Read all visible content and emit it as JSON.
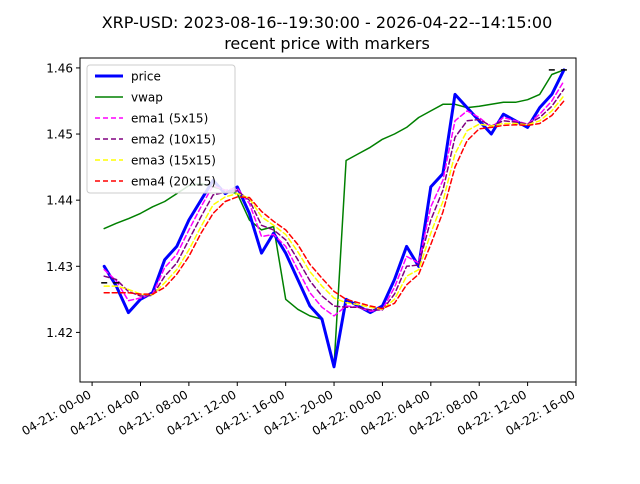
{
  "chart_data": {
    "type": "line",
    "title": "XRP-USD: 2023-08-16--19:30:00 - 2026-04-22--14:15:00",
    "subtitle": "recent price with markers",
    "xlabel": "",
    "ylabel": "",
    "x_ticks": [
      "04-21: 00-00",
      "04-21: 04-00",
      "04-21: 08-00",
      "04-21: 12-00",
      "04-21: 16-00",
      "04-21: 20-00",
      "04-22: 00-00",
      "04-22: 04-00",
      "04-22: 08-00",
      "04-22: 12-00",
      "04-22: 16-00"
    ],
    "y_ticks": [
      "1.42",
      "1.43",
      "1.44",
      "1.45",
      "1.46"
    ],
    "xlim": [
      "04-20 23:00",
      "04-22 16:00"
    ],
    "ylim": [
      1.4125,
      1.4615
    ],
    "grid": false,
    "legend": "top-left",
    "x": [
      "04-21 01:00",
      "04-21 02:00",
      "04-21 03:00",
      "04-21 04:00",
      "04-21 05:00",
      "04-21 06:00",
      "04-21 07:00",
      "04-21 08:00",
      "04-21 09:00",
      "04-21 10:00",
      "04-21 11:00",
      "04-21 12:00",
      "04-21 13:00",
      "04-21 14:00",
      "04-21 15:00",
      "04-21 16:00",
      "04-21 17:00",
      "04-21 18:00",
      "04-21 19:00",
      "04-21 20:00",
      "04-21 21:00",
      "04-21 22:00",
      "04-21 23:00",
      "04-22 00:00",
      "04-22 01:00",
      "04-22 02:00",
      "04-22 03:00",
      "04-22 04:00",
      "04-22 05:00",
      "04-22 06:00",
      "04-22 07:00",
      "04-22 08:00",
      "04-22 09:00",
      "04-22 10:00",
      "04-22 11:00",
      "04-22 12:00",
      "04-22 13:00",
      "04-22 14:00",
      "04-22 15:00"
    ],
    "series": [
      {
        "name": "price",
        "color": "#0000ff",
        "style": "solid",
        "width": 3,
        "values": [
          1.43,
          1.427,
          1.423,
          1.425,
          1.426,
          1.431,
          1.433,
          1.437,
          1.44,
          1.443,
          1.441,
          1.442,
          1.438,
          1.432,
          1.435,
          1.432,
          1.428,
          1.424,
          1.422,
          1.4148,
          1.425,
          1.424,
          1.423,
          1.424,
          1.428,
          1.433,
          1.43,
          1.442,
          1.444,
          1.456,
          1.454,
          1.452,
          1.45,
          1.453,
          1.452,
          1.451,
          1.454,
          1.456,
          1.4597
        ]
      },
      {
        "name": "vwap",
        "color": "#008000",
        "style": "solid",
        "width": 1.5,
        "values": [
          1.4357,
          1.4365,
          1.4372,
          1.438,
          1.439,
          1.4398,
          1.441,
          1.4422,
          1.4425,
          1.442,
          1.4415,
          1.441,
          1.437,
          1.4355,
          1.436,
          1.425,
          1.4235,
          1.4225,
          1.422,
          1.4148,
          1.446,
          1.447,
          1.448,
          1.4492,
          1.45,
          1.451,
          1.4525,
          1.4535,
          1.4545,
          1.4545,
          1.454,
          1.4542,
          1.4545,
          1.4548,
          1.4548,
          1.4552,
          1.456,
          1.459,
          1.4597
        ]
      },
      {
        "name": "ema1 (5x15)",
        "color": "#ff00ff",
        "style": "dashed",
        "width": 1.5,
        "values": [
          1.4295,
          1.4278,
          1.4248,
          1.4252,
          1.4258,
          1.4298,
          1.4318,
          1.4355,
          1.439,
          1.4422,
          1.4415,
          1.4418,
          1.4395,
          1.4345,
          1.4348,
          1.433,
          1.4295,
          1.426,
          1.4238,
          1.4225,
          1.424,
          1.4238,
          1.4232,
          1.4235,
          1.4268,
          1.4315,
          1.4305,
          1.439,
          1.443,
          1.452,
          1.4535,
          1.4525,
          1.451,
          1.4525,
          1.452,
          1.4515,
          1.453,
          1.455,
          1.458
        ]
      },
      {
        "name": "ema2 (10x15)",
        "color": "#800080",
        "style": "dashed",
        "width": 1.5,
        "values": [
          1.4285,
          1.428,
          1.4262,
          1.4255,
          1.4256,
          1.4285,
          1.4305,
          1.434,
          1.4375,
          1.4408,
          1.4412,
          1.4414,
          1.44,
          1.4362,
          1.4355,
          1.434,
          1.431,
          1.4278,
          1.4255,
          1.424,
          1.4238,
          1.4238,
          1.4234,
          1.4234,
          1.4258,
          1.43,
          1.4302,
          1.437,
          1.4415,
          1.4495,
          1.452,
          1.4522,
          1.4512,
          1.452,
          1.4518,
          1.4515,
          1.4525,
          1.4542,
          1.4568
        ]
      },
      {
        "name": "ema3 (15x15)",
        "color": "#ffff00",
        "style": "dashed",
        "width": 1.5,
        "values": [
          1.427,
          1.427,
          1.4265,
          1.4258,
          1.4257,
          1.4275,
          1.4295,
          1.4325,
          1.436,
          1.4393,
          1.4405,
          1.441,
          1.4403,
          1.4375,
          1.4362,
          1.4348,
          1.4322,
          1.4292,
          1.427,
          1.4252,
          1.4245,
          1.4242,
          1.4238,
          1.4235,
          1.425,
          1.4285,
          1.4295,
          1.435,
          1.4398,
          1.447,
          1.4505,
          1.4515,
          1.4512,
          1.4516,
          1.4516,
          1.4514,
          1.452,
          1.4535,
          1.4558
        ]
      },
      {
        "name": "ema4 (20x15)",
        "color": "#ff0000",
        "style": "dashed",
        "width": 1.5,
        "values": [
          1.426,
          1.426,
          1.426,
          1.4258,
          1.4258,
          1.4268,
          1.4288,
          1.4315,
          1.435,
          1.438,
          1.4398,
          1.4405,
          1.4404,
          1.4383,
          1.4368,
          1.4355,
          1.4333,
          1.4303,
          1.4282,
          1.4262,
          1.425,
          1.4245,
          1.424,
          1.4236,
          1.4244,
          1.4272,
          1.4288,
          1.4333,
          1.4382,
          1.445,
          1.449,
          1.4508,
          1.451,
          1.4513,
          1.4514,
          1.4513,
          1.4516,
          1.4528,
          1.455
        ]
      }
    ],
    "extra_markers": {
      "color": "#000000",
      "points": [
        {
          "x": "04-21 01:00",
          "y": 1.4275
        },
        {
          "x": "04-21 02:00",
          "y": 1.4275
        },
        {
          "x": "04-22 14:00",
          "y": 1.4597
        },
        {
          "x": "04-22 15:00",
          "y": 1.4597
        }
      ]
    }
  }
}
